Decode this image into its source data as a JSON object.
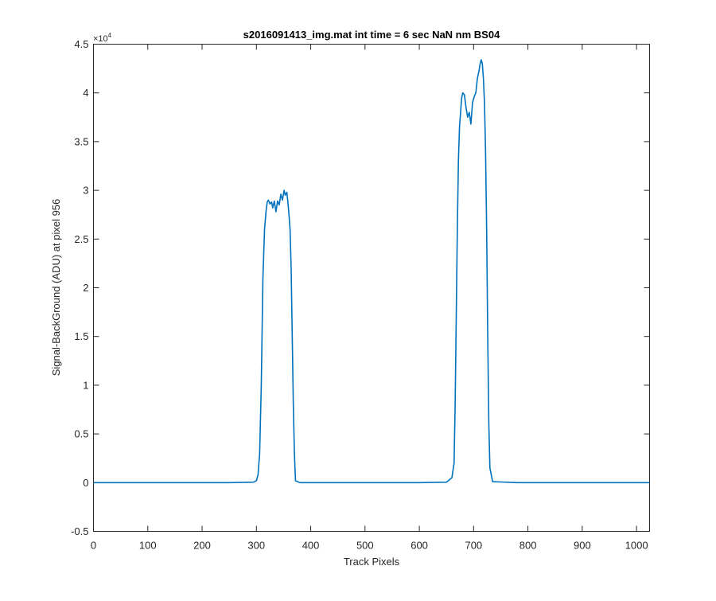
{
  "chart_data": {
    "type": "line",
    "title": "s2016091413_img.mat int time = 6 sec  NaN nm BS04",
    "xlabel": "Track Pixels",
    "ylabel": "Signal-BackGround (ADU) at pixel 956",
    "xlim": [
      0,
      1024
    ],
    "ylim": [
      -5000,
      45000
    ],
    "x_ticks": [
      0,
      100,
      200,
      300,
      400,
      500,
      600,
      700,
      800,
      900,
      1000
    ],
    "x_tick_labels": [
      "0",
      "100",
      "200",
      "300",
      "400",
      "500",
      "600",
      "700",
      "800",
      "900",
      "1000"
    ],
    "y_ticks": [
      -5000,
      0,
      5000,
      10000,
      15000,
      20000,
      25000,
      30000,
      35000,
      40000,
      45000
    ],
    "y_tick_labels": [
      "-0.5",
      "0",
      "0.5",
      "1",
      "1.5",
      "2",
      "2.5",
      "3",
      "3.5",
      "4",
      "4.5"
    ],
    "y_exponent_base": "×10",
    "y_exponent_power": "4",
    "grid": false,
    "line_color": "#0072BD",
    "series": [
      {
        "x": [
          0,
          50,
          100,
          150,
          200,
          250,
          295,
          300,
          303,
          306,
          309,
          312,
          315,
          318,
          320,
          322,
          325,
          328,
          330,
          333,
          336,
          339,
          342,
          345,
          348,
          351,
          353,
          356,
          358,
          360,
          362,
          364,
          366,
          368,
          370,
          372,
          380,
          450,
          500,
          550,
          600,
          650,
          660,
          664,
          666,
          668,
          670,
          672,
          674,
          676,
          678,
          680,
          683,
          686,
          689,
          692,
          695,
          698,
          701,
          704,
          707,
          710,
          712,
          714,
          716,
          718,
          720,
          722,
          724,
          726,
          728,
          730,
          735,
          780,
          850,
          900,
          950,
          1000,
          1024
        ],
        "y": [
          0,
          0,
          0,
          0,
          0,
          0,
          50,
          200,
          800,
          3000,
          10000,
          21000,
          26000,
          28000,
          28800,
          29000,
          28600,
          28800,
          28200,
          28900,
          27800,
          28900,
          28500,
          29600,
          29000,
          30000,
          29500,
          29800,
          28800,
          27500,
          26000,
          22000,
          15000,
          8000,
          3000,
          200,
          0,
          0,
          0,
          0,
          0,
          50,
          500,
          2000,
          8000,
          17000,
          26000,
          33000,
          36500,
          38000,
          39500,
          40000,
          39800,
          38500,
          37500,
          38000,
          36800,
          39000,
          39600,
          40000,
          41500,
          42300,
          43000,
          43400,
          43000,
          41500,
          39000,
          34000,
          26000,
          15000,
          6000,
          1500,
          100,
          0,
          0,
          0,
          0,
          0,
          0
        ]
      }
    ]
  }
}
